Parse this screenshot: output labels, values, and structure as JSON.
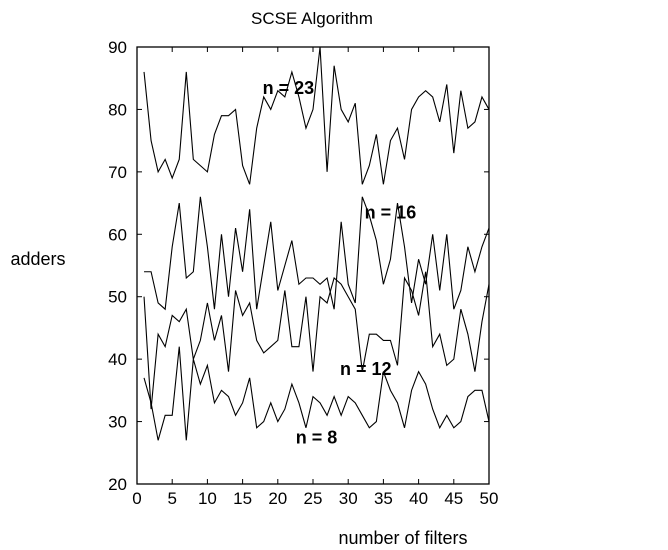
{
  "chart_data": {
    "type": "line",
    "title": "SCSE Algorithm",
    "xlabel": "number of filters",
    "ylabel": "adders",
    "xlim": [
      0,
      50
    ],
    "ylim": [
      20,
      90
    ],
    "xticks": [
      0,
      5,
      10,
      15,
      20,
      25,
      30,
      35,
      40,
      45,
      50
    ],
    "yticks": [
      20,
      30,
      40,
      50,
      60,
      70,
      80,
      90
    ],
    "grid": false,
    "x": [
      1,
      2,
      3,
      4,
      5,
      6,
      7,
      8,
      9,
      10,
      11,
      12,
      13,
      14,
      15,
      16,
      17,
      18,
      19,
      20,
      21,
      22,
      23,
      24,
      25,
      26,
      27,
      28,
      29,
      30,
      31,
      32,
      33,
      34,
      35,
      36,
      37,
      38,
      39,
      40,
      41,
      42,
      43,
      44,
      45,
      46,
      47,
      48,
      49,
      50
    ],
    "series": [
      {
        "label": "n = 23",
        "values": [
          86,
          75,
          70,
          72,
          69,
          72,
          86,
          72,
          71,
          70,
          76,
          79,
          79,
          80,
          71,
          68,
          77,
          82,
          80,
          83,
          82,
          86,
          82,
          77,
          80,
          90,
          70,
          87,
          80,
          78,
          81,
          68,
          71,
          76,
          68,
          75,
          77,
          72,
          80,
          82,
          83,
          82,
          78,
          84,
          73,
          83,
          77,
          78,
          82,
          80
        ]
      },
      {
        "label": "n = 16",
        "values": [
          54,
          54,
          49,
          48,
          58,
          65,
          53,
          54,
          66,
          58,
          48,
          60,
          50,
          61,
          54,
          64,
          48,
          55,
          62,
          51,
          55,
          59,
          52,
          53,
          53,
          52,
          53,
          48,
          62,
          52,
          49,
          66,
          63,
          59,
          52,
          56,
          65,
          58,
          49,
          56,
          52,
          60,
          51,
          60,
          48,
          51,
          58,
          54,
          58,
          61
        ]
      },
      {
        "label": "n = 12",
        "values": [
          50,
          32,
          44,
          42,
          47,
          46,
          48,
          40,
          43,
          49,
          43,
          47,
          38,
          51,
          47,
          49,
          43,
          41,
          42,
          43,
          51,
          42,
          42,
          50,
          38,
          50,
          49,
          53,
          52,
          50,
          48,
          38,
          44,
          44,
          43,
          43,
          39,
          53,
          51,
          47,
          54,
          42,
          44,
          39,
          40,
          48,
          44,
          38,
          46,
          52
        ]
      },
      {
        "label": "n = 8",
        "values": [
          37,
          33,
          27,
          31,
          31,
          42,
          27,
          40,
          36,
          39,
          33,
          35,
          34,
          31,
          33,
          37,
          29,
          30,
          33,
          30,
          32,
          36,
          33,
          29,
          34,
          33,
          31,
          34,
          31,
          34,
          33,
          31,
          29,
          30,
          38,
          35,
          33,
          29,
          35,
          38,
          36,
          32,
          29,
          31,
          29,
          30,
          34,
          35,
          35,
          30
        ]
      }
    ]
  }
}
